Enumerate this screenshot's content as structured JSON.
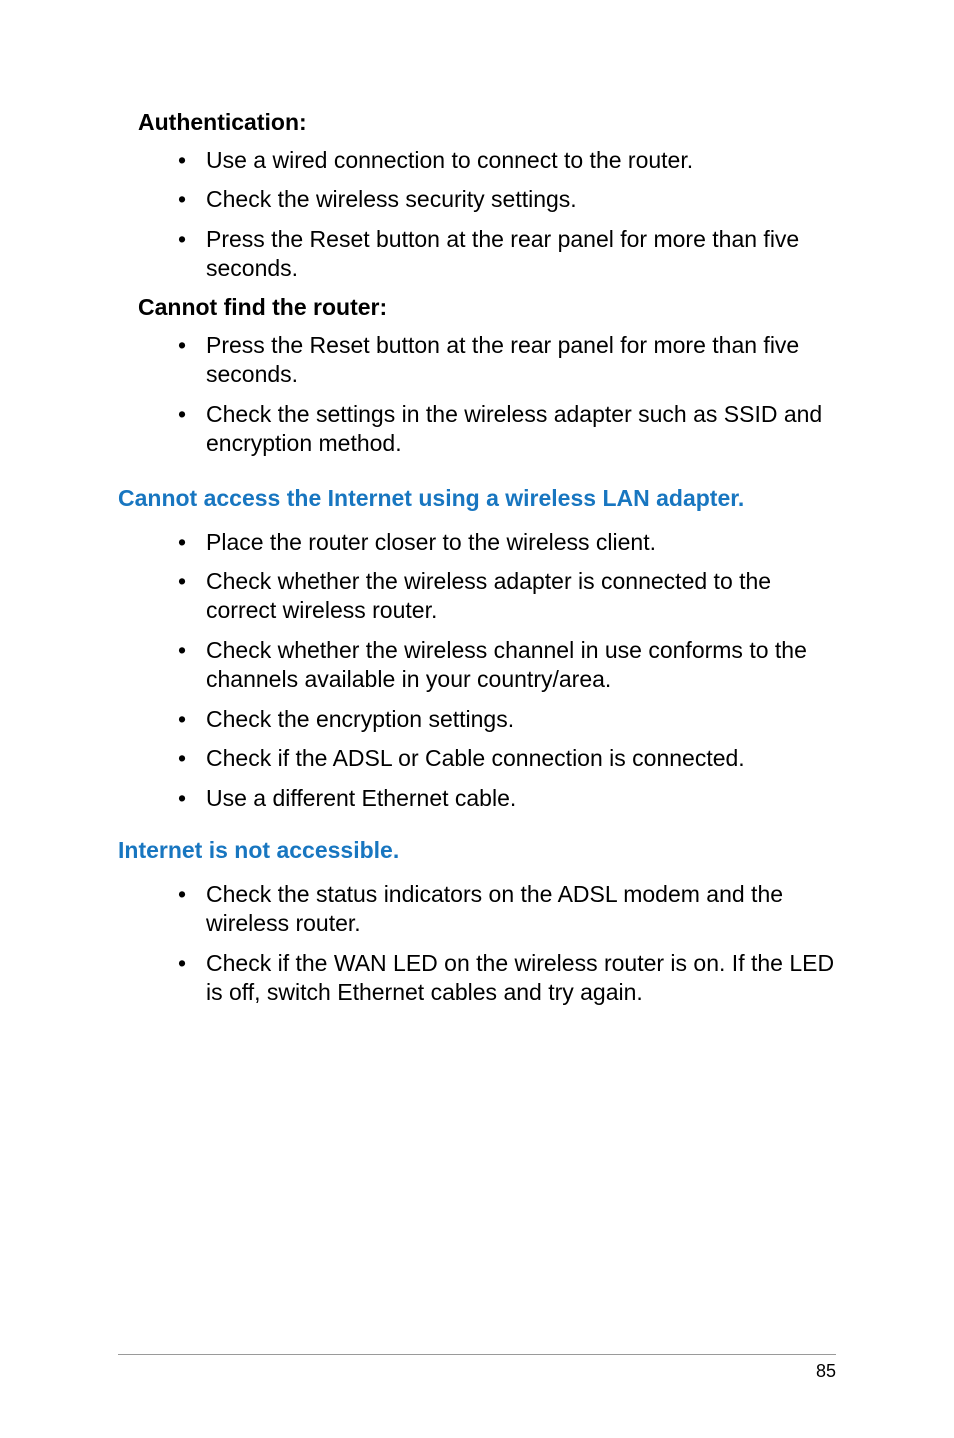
{
  "colors": {
    "background": "#ffffff",
    "text": "#000000",
    "heading_blue": "#1876c0",
    "footer_rule": "#9a9a9a"
  },
  "typography": {
    "body_fontsize_pt": 17,
    "heading_fontsize_pt": 17,
    "body_font": "Segoe UI / Myriad-like sans-serif",
    "heading_font": "Arial / Helvetica bold"
  },
  "sections": [
    {
      "title": "Authentication:",
      "bullets": [
        "Use a wired connection to connect to the router.",
        "Check the wireless security settings.",
        "Press the Reset button at the rear panel for more than five seconds."
      ]
    },
    {
      "title": "Cannot find the router:",
      "bullets": [
        "Press the Reset button at the rear panel for more than five seconds.",
        "Check the settings in the wireless adapter such as SSID and encryption method."
      ]
    }
  ],
  "blue_sections": [
    {
      "heading": "Cannot access the Internet using a wireless LAN adapter.",
      "bullets": [
        "Place the router closer to the wireless client.",
        "Check whether the wireless adapter is connected to the correct wireless router.",
        "Check whether the wireless channel in use conforms to the channels available in your country/area.",
        "Check the encryption settings.",
        "Check if the ADSL or Cable connection is connected.",
        "Use a different Ethernet cable."
      ]
    },
    {
      "heading": "Internet is not accessible.",
      "bullets": [
        "Check the status indicators on the ADSL modem and the wireless router.",
        "Check if the WAN LED on the wireless router is on. If the LED is off, switch Ethernet cables and try again."
      ]
    }
  ],
  "page_number": "85"
}
